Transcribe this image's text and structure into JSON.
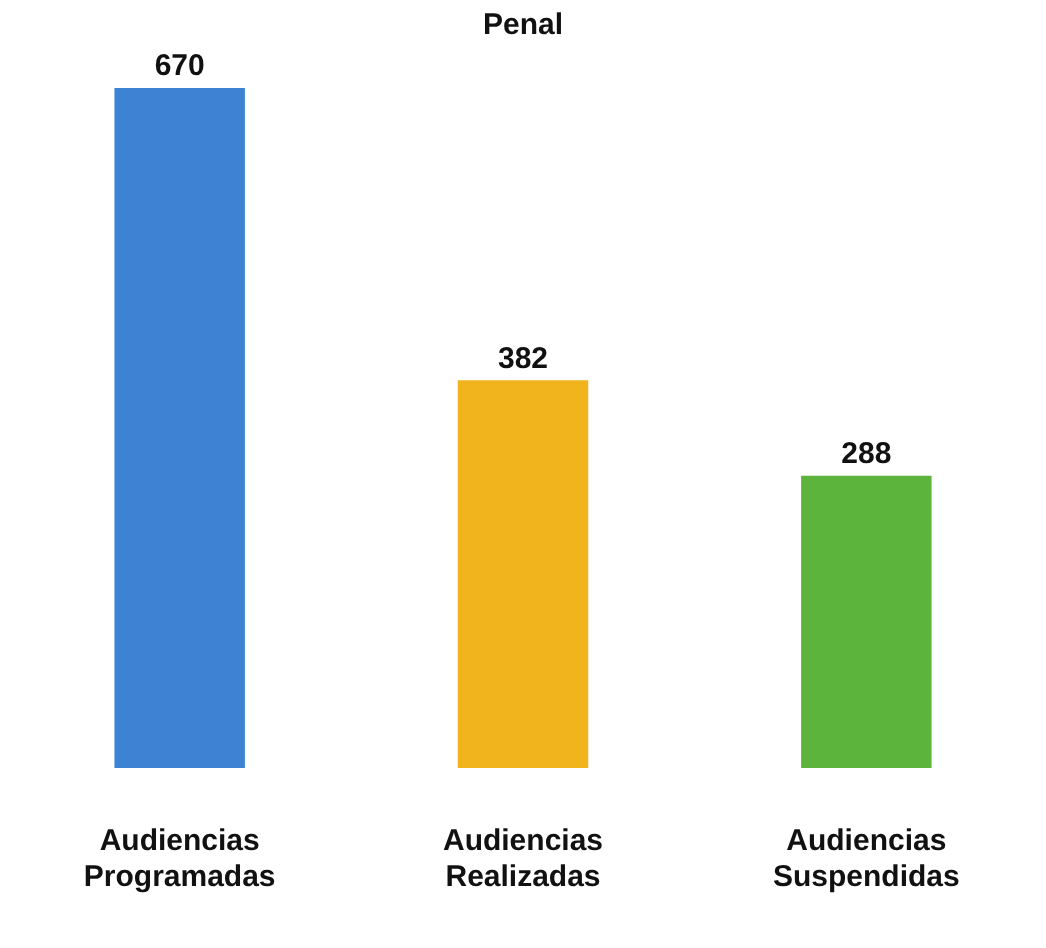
{
  "chart_data": {
    "type": "bar",
    "title": "Penal",
    "categories": [
      "Audiencias Programadas",
      "Audiencias Realizadas",
      "Audiencias Suspendidas"
    ],
    "values": [
      670,
      382,
      288
    ],
    "colors": [
      "#3d82d3",
      "#f1b41c",
      "#5cb43c"
    ],
    "data_labels": true,
    "grid": false,
    "legend": false
  }
}
